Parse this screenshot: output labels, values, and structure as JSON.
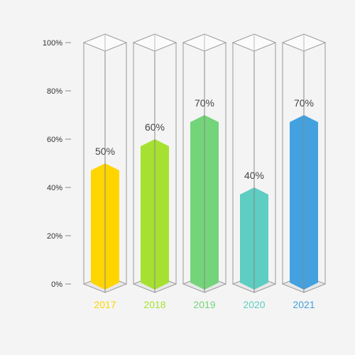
{
  "chart_data": {
    "type": "bar",
    "title": "",
    "xlabel": "",
    "ylabel": "",
    "categories": [
      "2017",
      "2018",
      "2019",
      "2020",
      "2021"
    ],
    "values": [
      50,
      60,
      70,
      40,
      70
    ],
    "value_labels": [
      "50%",
      "60%",
      "70%",
      "40%",
      "70%"
    ],
    "ylim": [
      0,
      100
    ],
    "y_ticks": [
      0,
      20,
      40,
      60,
      80,
      100
    ],
    "y_tick_labels": [
      "0%",
      "20%",
      "40%",
      "60%",
      "80%",
      "100%"
    ],
    "colors": [
      "#ffd500",
      "#a6e132",
      "#74d47a",
      "#5ecdc2",
      "#43a1e0"
    ],
    "grid": false,
    "style": "3d-glass-cylinders"
  }
}
